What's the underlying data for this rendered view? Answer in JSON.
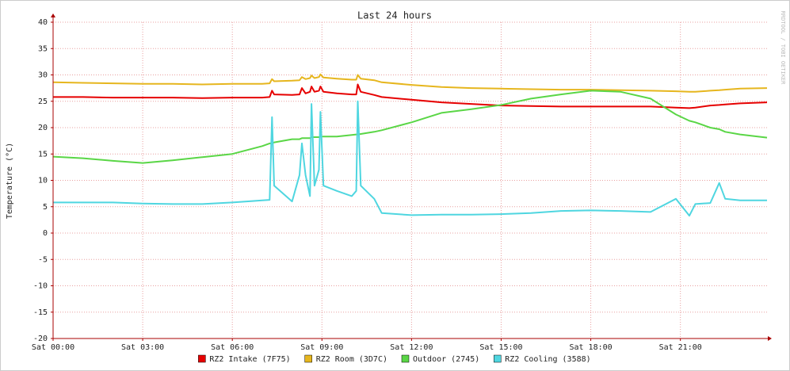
{
  "chart_data": {
    "type": "line",
    "title": "Last 24 hours",
    "y_label": "Temperature (°C)",
    "watermark": "RRDTOOL / TOBI OETIKER",
    "x": [
      0,
      1,
      2,
      3,
      4,
      5,
      6,
      7,
      7.25,
      7.33,
      7.4,
      8,
      8.25,
      8.33,
      8.45,
      8.6,
      8.65,
      8.75,
      8.9,
      8.95,
      9.05,
      9.5,
      10,
      10.15,
      10.2,
      10.3,
      10.75,
      11,
      12,
      13,
      14,
      15,
      16,
      17,
      18,
      19,
      20,
      20.85,
      21.3,
      21.5,
      22,
      22.3,
      22.5,
      23,
      23.9
    ],
    "series": [
      {
        "name": "RZ2 Intake (7F75)",
        "color": "#e60000",
        "values": [
          25.8,
          25.8,
          25.7,
          25.7,
          25.7,
          25.6,
          25.7,
          25.7,
          25.8,
          27,
          26.3,
          26.2,
          26.3,
          27.5,
          26.5,
          26.8,
          27.8,
          26.8,
          27,
          27.8,
          26.8,
          26.5,
          26.3,
          26.3,
          28.2,
          26.8,
          26.2,
          25.8,
          25.3,
          24.8,
          24.5,
          24.2,
          24.1,
          24,
          24,
          24,
          24,
          23.8,
          23.7,
          23.8,
          24.2,
          24.3,
          24.4,
          24.6,
          24.8
        ]
      },
      {
        "name": "RZ2 Room (3D7C)",
        "color": "#e6b61e",
        "values": [
          28.6,
          28.5,
          28.4,
          28.3,
          28.3,
          28.2,
          28.3,
          28.3,
          28.4,
          29.2,
          28.8,
          28.9,
          29,
          29.6,
          29.2,
          29.4,
          29.9,
          29.4,
          29.6,
          30.1,
          29.5,
          29.3,
          29.1,
          29.1,
          30,
          29.3,
          29,
          28.6,
          28.1,
          27.7,
          27.5,
          27.4,
          27.3,
          27.2,
          27.2,
          27.1,
          27,
          26.9,
          26.8,
          26.8,
          27,
          27.1,
          27.2,
          27.4,
          27.5
        ]
      },
      {
        "name": "Outdoor (2745)",
        "color": "#5ad646",
        "values": [
          14.5,
          14.2,
          13.7,
          13.3,
          13.8,
          14.4,
          15,
          16.5,
          17,
          17,
          17.2,
          17.8,
          17.8,
          18,
          18,
          18,
          18.2,
          18.2,
          18.2,
          18.3,
          18.3,
          18.3,
          18.6,
          18.7,
          18.7,
          18.8,
          19.2,
          19.5,
          21,
          22.8,
          23.5,
          24.3,
          25.5,
          26.3,
          27,
          26.8,
          25.5,
          22.5,
          21.3,
          21,
          20,
          19.7,
          19.2,
          18.7,
          18.1
        ]
      },
      {
        "name": "RZ2 Cooling (3588)",
        "color": "#4fd6e0",
        "values": [
          5.8,
          5.8,
          5.8,
          5.6,
          5.5,
          5.5,
          5.8,
          6.2,
          6.3,
          22,
          9,
          6,
          11,
          17,
          11,
          7,
          24.5,
          9,
          12,
          23,
          9,
          8,
          7,
          8,
          25,
          9,
          6.5,
          3.8,
          3.4,
          3.5,
          3.5,
          3.6,
          3.8,
          4.2,
          4.3,
          4.2,
          4,
          6.5,
          3.3,
          5.5,
          5.7,
          9.5,
          6.5,
          6.2,
          6.2
        ]
      }
    ],
    "xlim": [
      0,
      23.9
    ],
    "xticks": [
      {
        "value": 0,
        "label": "Sat 00:00"
      },
      {
        "value": 3,
        "label": "Sat 03:00"
      },
      {
        "value": 6,
        "label": "Sat 06:00"
      },
      {
        "value": 9,
        "label": "Sat 09:00"
      },
      {
        "value": 12,
        "label": "Sat 12:00"
      },
      {
        "value": 15,
        "label": "Sat 15:00"
      },
      {
        "value": 18,
        "label": "Sat 18:00"
      },
      {
        "value": 21,
        "label": "Sat 21:00"
      }
    ],
    "ylim": [
      -20,
      40
    ],
    "yticks": [
      -20,
      -15,
      -10,
      -5,
      0,
      5,
      10,
      15,
      20,
      25,
      30,
      35,
      40
    ],
    "grid": true
  }
}
